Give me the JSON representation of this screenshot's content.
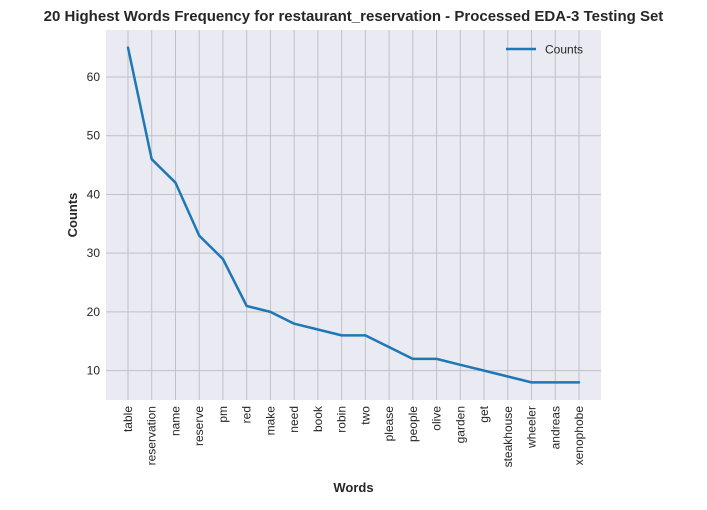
{
  "chart_data": {
    "type": "line",
    "title": "20 Highest Words Frequency for restaurant_reservation - Processed EDA-3 Testing Set",
    "xlabel": "Words",
    "ylabel": "Counts",
    "categories": [
      "table",
      "reservation",
      "name",
      "reserve",
      "pm",
      "red",
      "make",
      "need",
      "book",
      "robin",
      "two",
      "please",
      "people",
      "olive",
      "garden",
      "get",
      "steakhouse",
      "wheeler",
      "andreas",
      "xenophobe"
    ],
    "series": [
      {
        "name": "Counts",
        "values": [
          65,
          46,
          42,
          33,
          29,
          21,
          20,
          18,
          17,
          16,
          16,
          14,
          12,
          12,
          11,
          10,
          9,
          8,
          8,
          8
        ],
        "color": "#1f77b4"
      }
    ],
    "ylim": [
      5,
      68
    ],
    "yticks": [
      10,
      20,
      30,
      40,
      50,
      60
    ],
    "grid": true,
    "legend_position": "top-right",
    "background_color": "#eaeaf2",
    "grid_color": "#c0c0c8"
  }
}
